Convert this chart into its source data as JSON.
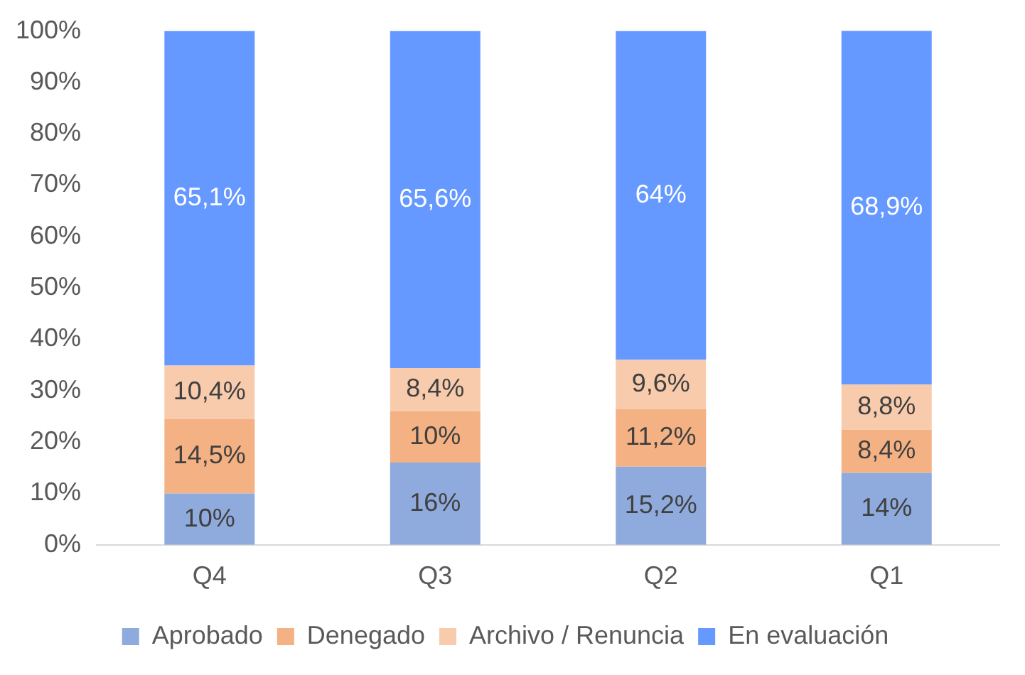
{
  "chart_data": {
    "type": "bar",
    "stacked": true,
    "categories": [
      "Q4",
      "Q3",
      "Q2",
      "Q1"
    ],
    "series": [
      {
        "name": "Aprobado",
        "color": "#8faadc",
        "values": [
          10,
          16,
          15.2,
          14
        ],
        "value_labels": [
          "10%",
          "16%",
          "15,2%",
          "14%"
        ]
      },
      {
        "name": "Denegado",
        "color": "#f4b183",
        "values": [
          14.5,
          10,
          11.2,
          8.4
        ],
        "value_labels": [
          "14,5%",
          "10%",
          "11,2%",
          "8,4%"
        ]
      },
      {
        "name": "Archivo / Renuncia",
        "color": "#f8cbad",
        "values": [
          10.4,
          8.4,
          9.6,
          8.8
        ],
        "value_labels": [
          "10,4%",
          "8,4%",
          "9,6%",
          "8,8%"
        ]
      },
      {
        "name": "En evaluación",
        "color": "#6699ff",
        "values": [
          65.1,
          65.6,
          64,
          68.9
        ],
        "value_labels": [
          "65,1%",
          "65,6%",
          "64%",
          "68,9%"
        ]
      }
    ],
    "ylim": [
      0,
      100
    ],
    "yticks": [
      {
        "value": 0,
        "label": "0%"
      },
      {
        "value": 10,
        "label": "10%"
      },
      {
        "value": 20,
        "label": "20%"
      },
      {
        "value": 30,
        "label": "30%"
      },
      {
        "value": 40,
        "label": "40%"
      },
      {
        "value": 50,
        "label": "50%"
      },
      {
        "value": 60,
        "label": "60%"
      },
      {
        "value": 70,
        "label": "70%"
      },
      {
        "value": 80,
        "label": "80%"
      },
      {
        "value": 90,
        "label": "90%"
      },
      {
        "value": 100,
        "label": "100%"
      }
    ],
    "grid": false,
    "legend": "bottom"
  }
}
